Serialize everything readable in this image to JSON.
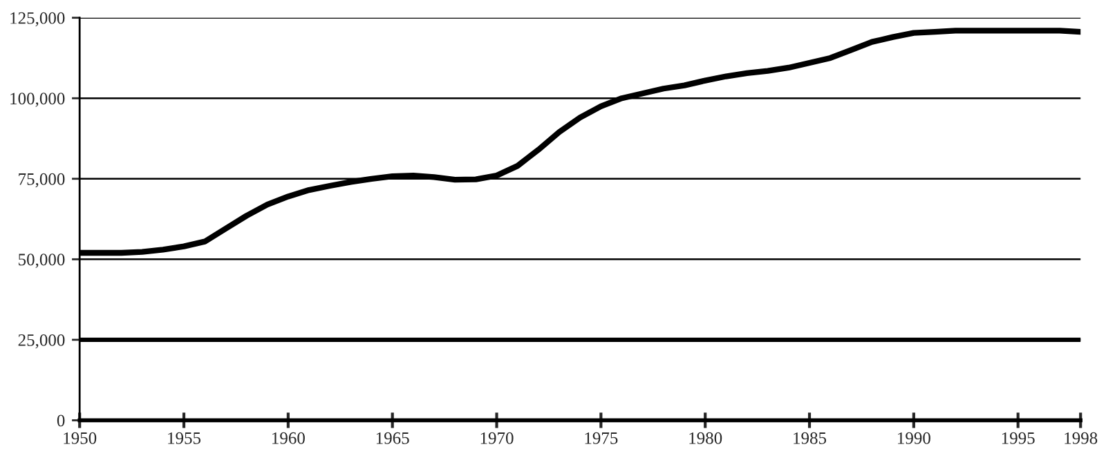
{
  "chart_data": {
    "type": "line",
    "x": [
      1950,
      1951,
      1952,
      1953,
      1954,
      1955,
      1956,
      1957,
      1958,
      1959,
      1960,
      1961,
      1962,
      1963,
      1964,
      1965,
      1966,
      1967,
      1968,
      1969,
      1970,
      1971,
      1972,
      1973,
      1974,
      1975,
      1976,
      1977,
      1978,
      1979,
      1980,
      1981,
      1982,
      1983,
      1984,
      1985,
      1986,
      1987,
      1988,
      1989,
      1990,
      1991,
      1992,
      1993,
      1994,
      1995,
      1996,
      1997,
      1998
    ],
    "series": [
      {
        "color": "#000000",
        "values": [
          52000,
          52000,
          52000,
          52300,
          53000,
          54000,
          55500,
          59500,
          63500,
          67000,
          69500,
          71500,
          72800,
          74000,
          75000,
          75800,
          76000,
          75500,
          74700,
          74800,
          76000,
          79000,
          84000,
          89500,
          94000,
          97500,
          100000,
          101500,
          103000,
          104000,
          105500,
          106800,
          107800,
          108500,
          109500,
          111000,
          112500,
          115000,
          117500,
          119000,
          120300,
          120600,
          121000,
          121000,
          121000,
          121000,
          121000,
          121000,
          120600
        ]
      }
    ],
    "xlim": [
      1950,
      1998
    ],
    "xticks": [
      1950,
      1955,
      1960,
      1965,
      1970,
      1975,
      1980,
      1985,
      1990,
      1995,
      1998
    ],
    "ylim": [
      0,
      125000
    ],
    "yticks": [
      {
        "value": 0,
        "label": "0"
      },
      {
        "value": 25000,
        "label": "25,000"
      },
      {
        "value": 50000,
        "label": "50,000"
      },
      {
        "value": 75000,
        "label": "75,000"
      },
      {
        "value": 100000,
        "label": "100,000"
      },
      {
        "value": 125000,
        "label": "125,000"
      }
    ],
    "ref_lines": [
      {
        "axis": "y",
        "value": 25000,
        "color": "#000000"
      }
    ],
    "grid": "y",
    "marker": "none",
    "line_style": "solid",
    "legend": false
  }
}
